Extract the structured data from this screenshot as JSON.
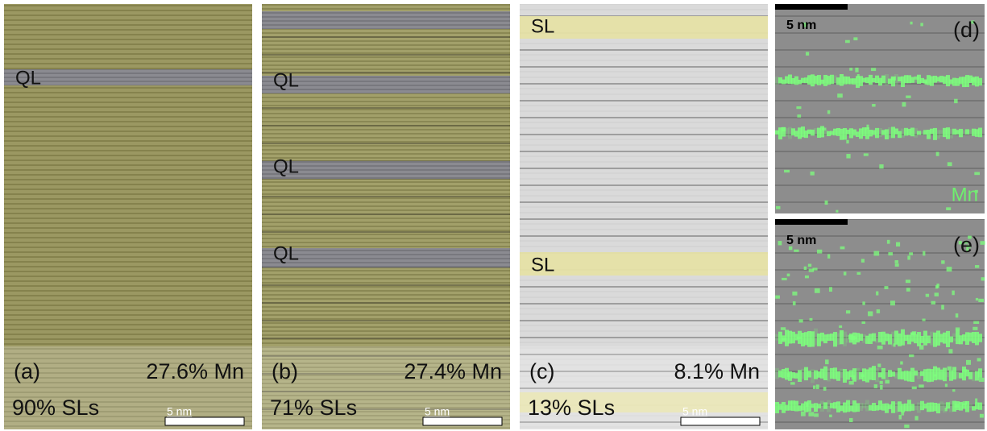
{
  "panels": [
    {
      "label": "(a)",
      "composition": "27.6% Mn",
      "sl_fraction": "90% SLs",
      "scale_bar": "5 nm",
      "band_labels": [
        "QL"
      ]
    },
    {
      "label": "(b)",
      "composition": "27.4% Mn",
      "sl_fraction": "71% SLs",
      "scale_bar": "5 nm",
      "band_labels": [
        "QL",
        "QL",
        "QL"
      ]
    },
    {
      "label": "(c)",
      "composition": "8.1% Mn",
      "sl_fraction": "13% SLs",
      "scale_bar": "5 nm",
      "band_labels": [
        "SL",
        "SL"
      ]
    }
  ],
  "eds_maps": [
    {
      "label": "(d)",
      "scale_bar": "5 nm",
      "element": "Mn"
    },
    {
      "label": "(e)",
      "scale_bar": "5 nm"
    }
  ]
}
